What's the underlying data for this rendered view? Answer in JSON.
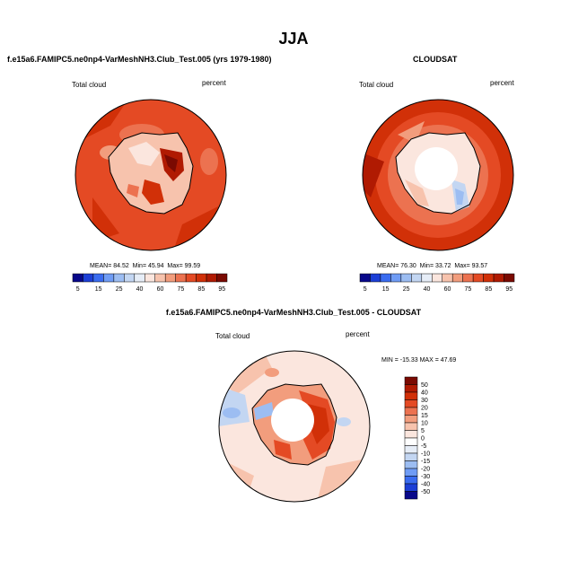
{
  "main_title": "JJA",
  "panels": [
    {
      "title": "f.e15a6.FAMIPC5.ne0np4-VarMeshNH3.Club_Test.005 (yrs 1979-1980)",
      "left_label": "Total cloud",
      "right_label": "percent",
      "stats": {
        "mean": "MEAN=  84.52",
        "min": "Min=  45.94",
        "max": "Max=  99.59"
      }
    },
    {
      "title": "CLOUDSAT",
      "left_label": "Total cloud",
      "right_label": "percent",
      "stats": {
        "mean": "MEAN=  76.30",
        "min": "Min=  33.72",
        "max": "Max=  93.57"
      }
    },
    {
      "title": "f.e15a6.FAMIPC5.ne0np4-VarMeshNH3.Club_Test.005 - CLOUDSAT",
      "left_label": "Total cloud",
      "right_label": "percent",
      "stats": {
        "minmax": "MIN = -15.33  MAX =  47.69"
      }
    }
  ],
  "colorbar_abs": {
    "labels": [
      "5",
      "15",
      "25",
      "40",
      "60",
      "75",
      "85",
      "95"
    ],
    "colors": [
      "#08088a",
      "#1c3fd6",
      "#3a6cf0",
      "#6f9cf5",
      "#9cbdf2",
      "#c3d6f2",
      "#e6edf7",
      "#fbe6de",
      "#f7c3ad",
      "#f29d7d",
      "#ec7250",
      "#e44a24",
      "#d13008",
      "#b01a02",
      "#7a0a02"
    ]
  },
  "colorbar_diff": {
    "labels": [
      "50",
      "40",
      "30",
      "20",
      "15",
      "10",
      "5",
      "0",
      "-5",
      "-10",
      "-15",
      "-20",
      "-30",
      "-40",
      "-50"
    ],
    "colors": [
      "#7a0a02",
      "#b01a02",
      "#d13008",
      "#e44a24",
      "#ec7250",
      "#f29d7d",
      "#f7c3ad",
      "#fbe6de",
      "#ffffff",
      "#e6edf7",
      "#c3d6f2",
      "#9cbdf2",
      "#6f9cf5",
      "#3a6cf0",
      "#1c3fd6",
      "#08088a"
    ]
  }
}
